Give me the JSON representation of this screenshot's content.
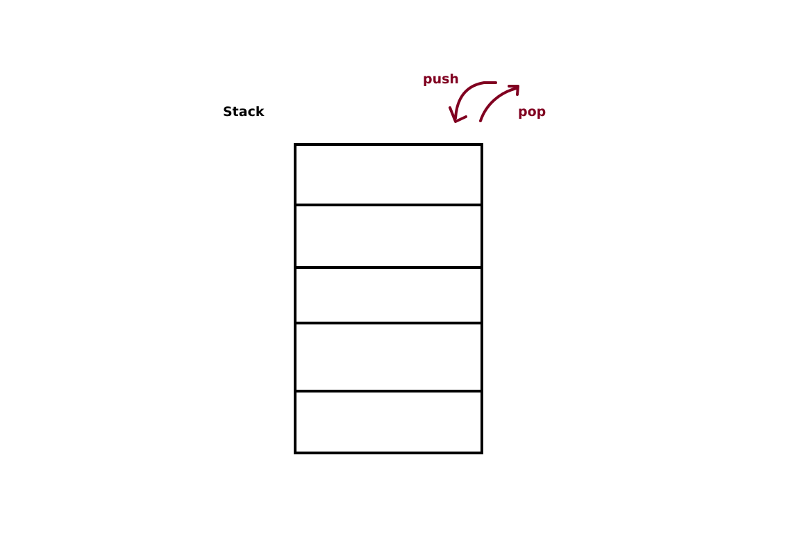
{
  "diagram": {
    "title": "Stack",
    "cells": [
      "",
      "",
      "",
      "",
      ""
    ],
    "operations": {
      "push": "push",
      "pop": "pop"
    }
  },
  "colors": {
    "stroke": "#000000",
    "accent": "#800020",
    "background": "#ffffff"
  },
  "icons": {
    "push": "curved-arrow-down-icon",
    "pop": "curved-arrow-up-icon"
  }
}
